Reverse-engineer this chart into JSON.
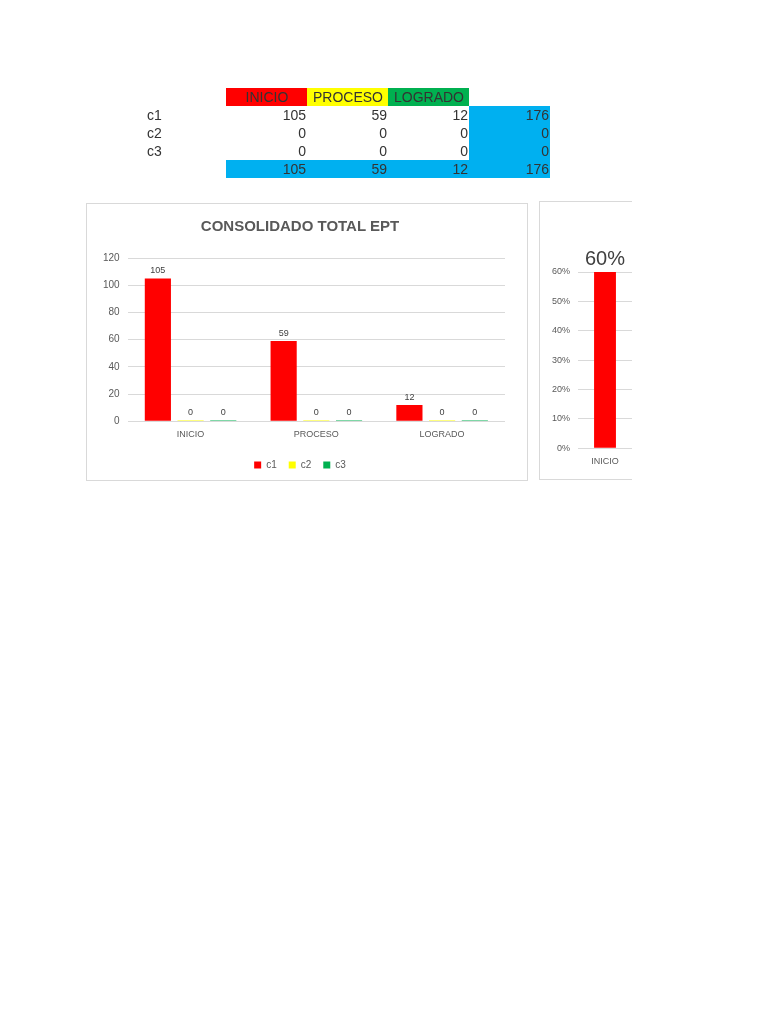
{
  "chart_data": [
    {
      "type": "heatmap",
      "categories": [
        "INICIO",
        "PROCESO",
        "LOGRADO",
        null
      ],
      "y_categories": [
        "c1",
        "c2",
        "c3",
        null
      ],
      "cells": [
        [
          105,
          59,
          12,
          176
        ],
        [
          0,
          0,
          0,
          0
        ],
        [
          0,
          0,
          0,
          0
        ],
        [
          105,
          59,
          12,
          176
        ]
      ],
      "data_labels": true
    },
    {
      "type": "bar",
      "title": "CONSOLIDADO TOTAL EPT",
      "categories": [
        "INICIO",
        "PROCESO",
        "LOGRADO"
      ],
      "series": [
        {
          "name": "c1",
          "color": "#ff0000",
          "values": [
            105,
            59,
            12
          ]
        },
        {
          "name": "c2",
          "color": "#ffff00",
          "values": [
            0,
            0,
            0
          ]
        },
        {
          "name": "c3",
          "color": "#00b050",
          "values": [
            0,
            0,
            0
          ]
        }
      ],
      "ylim": [
        0,
        120
      ],
      "yticks": [
        0,
        20,
        40,
        60,
        80,
        100,
        120
      ],
      "grid": "y",
      "legend": "bottom",
      "data_labels": true
    },
    {
      "type": "bar",
      "categories": [
        "INICIO"
      ],
      "values": [
        60
      ],
      "color": "#ff0000",
      "value_labels": [
        "60%"
      ],
      "ylim": [
        0,
        60
      ],
      "yticks": [
        {
          "value": 0,
          "label": "0%"
        },
        {
          "value": 10,
          "label": "10%"
        },
        {
          "value": 20,
          "label": "20%"
        },
        {
          "value": 30,
          "label": "30%"
        },
        {
          "value": 40,
          "label": "40%"
        },
        {
          "value": 50,
          "label": "50%"
        },
        {
          "value": 60,
          "label": "60%"
        }
      ],
      "grid": "y"
    }
  ]
}
